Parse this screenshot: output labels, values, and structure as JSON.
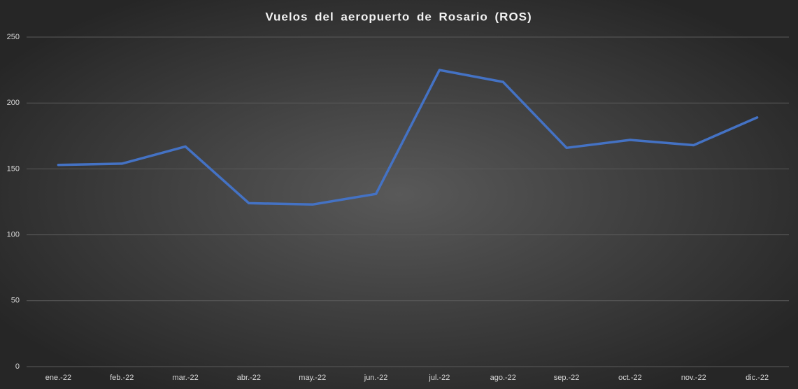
{
  "chart_data": {
    "type": "line",
    "title": "Vuelos del aeropuerto de Rosario (ROS)",
    "categories": [
      "ene.-22",
      "feb.-22",
      "mar.-22",
      "abr.-22",
      "may.-22",
      "jun.-22",
      "jul.-22",
      "ago.-22",
      "sep.-22",
      "oct.-22",
      "nov.-22",
      "dic.-22"
    ],
    "values": [
      153,
      154,
      167,
      124,
      123,
      131,
      225,
      216,
      166,
      172,
      168,
      189
    ],
    "color": "#4472c4",
    "ylim": [
      0,
      250
    ],
    "yticks": [
      0,
      50,
      100,
      150,
      200,
      250
    ],
    "grid": true
  }
}
